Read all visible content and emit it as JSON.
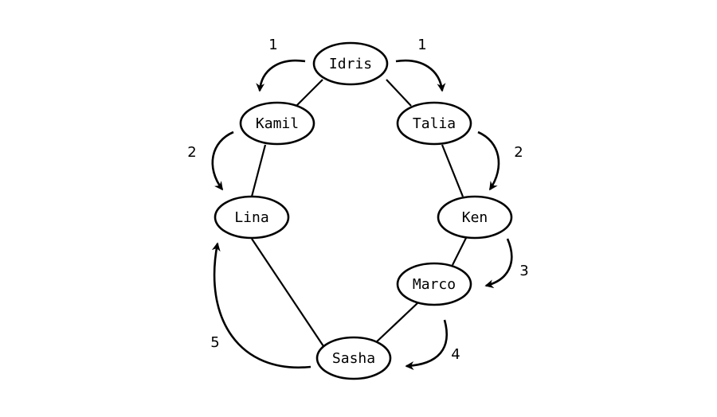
{
  "nodes": {
    "idris": "Idris",
    "kamil": "Kamil",
    "talia": "Talia",
    "lina": "Lina",
    "ken": "Ken",
    "marco": "Marco",
    "sasha": "Sasha"
  },
  "edges": [
    [
      "Idris",
      "Kamil"
    ],
    [
      "Idris",
      "Talia"
    ],
    [
      "Kamil",
      "Lina"
    ],
    [
      "Talia",
      "Ken"
    ],
    [
      "Ken",
      "Marco"
    ],
    [
      "Marco",
      "Sasha"
    ],
    [
      "Lina",
      "Sasha"
    ]
  ],
  "steps": {
    "idris_to_kamil": "1",
    "idris_to_talia": "1",
    "kamil_to_lina": "2",
    "talia_to_ken": "2",
    "ken_to_marco": "3",
    "marco_to_sasha": "4",
    "sasha_to_lina": "5"
  }
}
